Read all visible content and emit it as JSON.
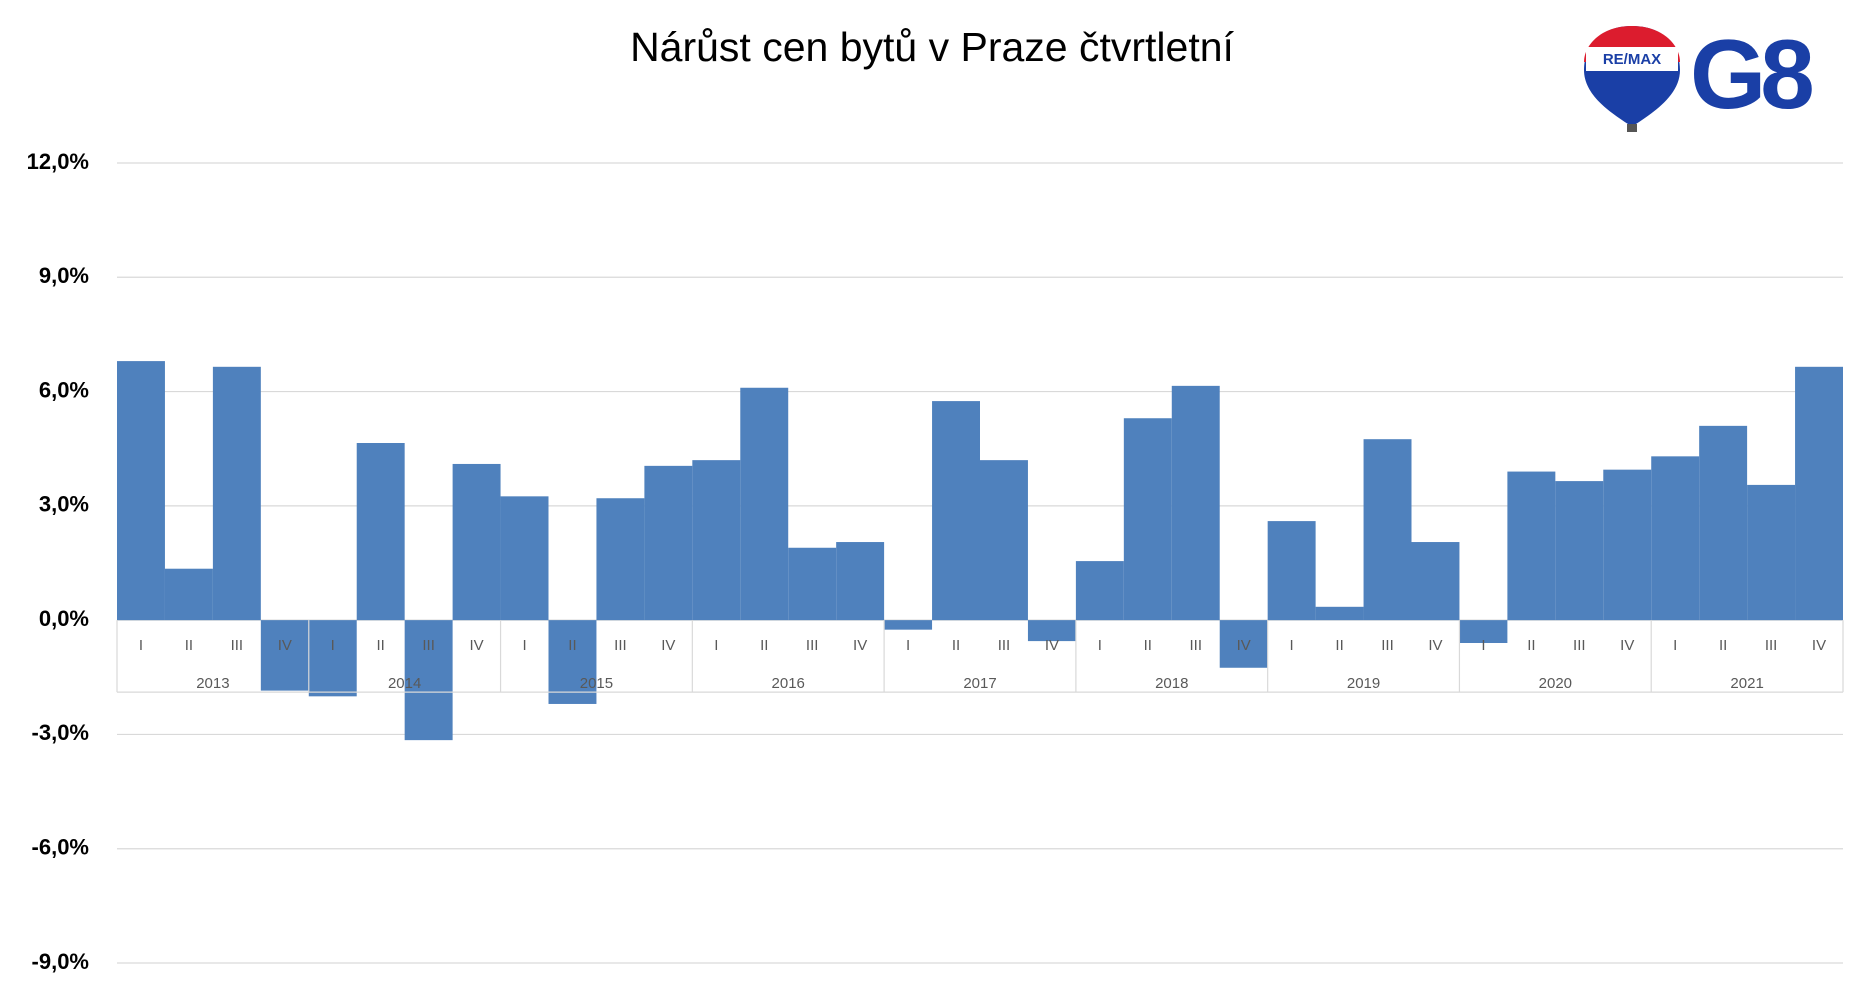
{
  "chart_data": {
    "type": "bar",
    "title": "Nárůst cen bytů v Praze čtvrtletní",
    "brand": {
      "remax": "RE/MAX",
      "g8": "G8"
    },
    "categories": [
      "I",
      "II",
      "III",
      "IV",
      "I",
      "II",
      "III",
      "IV",
      "I",
      "II",
      "III",
      "IV",
      "I",
      "II",
      "III",
      "IV",
      "I",
      "II",
      "III",
      "IV",
      "I",
      "II",
      "III",
      "IV",
      "I",
      "II",
      "III",
      "IV",
      "I",
      "II",
      "III",
      "IV",
      "I",
      "II",
      "III",
      "IV"
    ],
    "groups": [
      "2013",
      "2014",
      "2015",
      "2016",
      "2017",
      "2018",
      "2019",
      "2020",
      "2021"
    ],
    "values": [
      6.8,
      1.35,
      6.65,
      -1.85,
      -2.0,
      4.65,
      -3.15,
      4.1,
      3.25,
      -2.2,
      3.2,
      4.05,
      4.2,
      6.1,
      1.9,
      2.05,
      -0.25,
      5.75,
      4.2,
      -0.55,
      1.55,
      5.3,
      6.15,
      -1.25,
      2.6,
      0.35,
      4.75,
      2.05,
      -0.6,
      3.9,
      3.65,
      3.95,
      4.3,
      5.1,
      3.55,
      6.65
    ],
    "color": "#4f81bd",
    "ylim": [
      -9,
      12
    ],
    "yticks": [
      {
        "value": -9,
        "label": "-9,0%"
      },
      {
        "value": -6,
        "label": "-6,0%"
      },
      {
        "value": -3,
        "label": "-3,0%"
      },
      {
        "value": 0,
        "label": "0,0%"
      },
      {
        "value": 3,
        "label": "3,0%"
      },
      {
        "value": 6,
        "label": "6,0%"
      },
      {
        "value": 9,
        "label": "9,0%"
      },
      {
        "value": 12,
        "label": "12,0%"
      }
    ],
    "grid": true
  }
}
